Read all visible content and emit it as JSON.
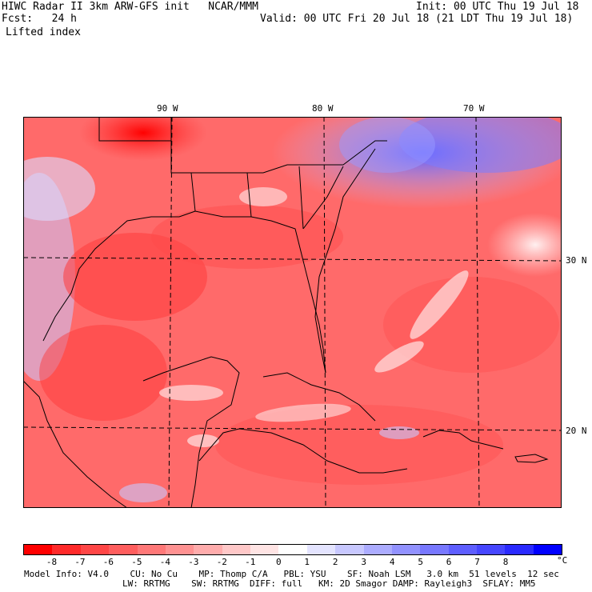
{
  "header": {
    "title_line": "HIWC Radar II 3km ARW-GFS init   NCAR/MMM",
    "init_line": "Init: 00 UTC Thu 19 Jul 18",
    "fcst_line": "Fcst:   24 h",
    "valid_line": "Valid: 00 UTC Fri 20 Jul 18 (21 LDT Thu 19 Jul 18)",
    "field_label": "Lifted index"
  },
  "map": {
    "lon_labels": [
      "90 W",
      "80 W",
      "70 W"
    ],
    "lat_labels": [
      "30 N",
      "20 N"
    ]
  },
  "colorbar": {
    "unit": "°C",
    "tick_labels": [
      "-8",
      "-7",
      "-6",
      "-5",
      "-4",
      "-3",
      "-2",
      "-1",
      "0",
      "1",
      "2",
      "3",
      "4",
      "5",
      "6",
      "7",
      "8"
    ],
    "colors": [
      "#ff0000",
      "#ff2a2a",
      "#ff4646",
      "#ff5e5e",
      "#ff7878",
      "#ff9292",
      "#ffacac",
      "#ffc8c8",
      "#ffe4e4",
      "#ffffff",
      "#e4e4ff",
      "#c8c8ff",
      "#acacff",
      "#9292ff",
      "#7878ff",
      "#5e5eff",
      "#4646ff",
      "#2a2aff",
      "#0000ff"
    ]
  },
  "footer": {
    "line1": "Model Info: V4.0    CU: No Cu    MP: Thomp C/A   PBL: YSU    SF: Noah LSM   3.0 km  51 levels  12 sec",
    "line2": "LW: RRTMG    SW: RRTMG  DIFF: full   KM: 2D Smagor DAMP: Rayleigh3  SFLAY: MM5"
  }
}
